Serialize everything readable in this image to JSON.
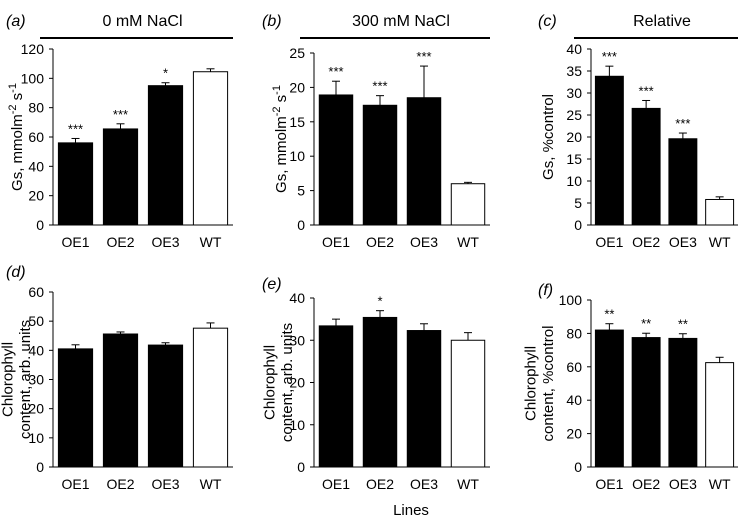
{
  "figure": {
    "common_xlabel": "Lines"
  },
  "chart_data": [
    {
      "type": "bar",
      "label": "(a)",
      "title": "0 mM NaCl",
      "categories": [
        "OE1",
        "OE2",
        "OE3",
        "WT"
      ],
      "ylabel": "Gs, mmolm^-2 s^-1",
      "ylim": [
        0,
        120
      ],
      "yticks": [
        0,
        20,
        40,
        60,
        80,
        100,
        120
      ],
      "values": [
        56,
        65.5,
        95,
        104.5
      ],
      "errors": [
        3,
        3.5,
        2,
        2
      ],
      "significance": [
        "***",
        "***",
        "*",
        ""
      ],
      "bar_colors": [
        "#000000",
        "#000000",
        "#000000",
        "#ffffff"
      ]
    },
    {
      "type": "bar",
      "label": "(b)",
      "title": "300 mM NaCl",
      "categories": [
        "OE1",
        "OE2",
        "OE3",
        "WT"
      ],
      "ylabel": "Gs, mmolm^-2 s^-1",
      "ylim": [
        0,
        25
      ],
      "yticks": [
        0,
        5,
        10,
        15,
        20,
        25
      ],
      "values": [
        18.9,
        17.4,
        18.5,
        6.0
      ],
      "errors": [
        2.0,
        1.4,
        4.6,
        0.2
      ],
      "significance": [
        "***",
        "***",
        "***",
        ""
      ],
      "bar_colors": [
        "#000000",
        "#000000",
        "#000000",
        "#ffffff"
      ]
    },
    {
      "type": "bar",
      "label": "(c)",
      "title": "Relative",
      "categories": [
        "OE1",
        "OE2",
        "OE3",
        "WT"
      ],
      "ylabel": "Gs, %control",
      "ylim": [
        0,
        40
      ],
      "yticks": [
        0,
        5,
        10,
        15,
        20,
        25,
        30,
        35,
        40
      ],
      "values": [
        33.8,
        26.5,
        19.6,
        5.8
      ],
      "errors": [
        2.3,
        1.8,
        1.3,
        0.6
      ],
      "significance": [
        "***",
        "***",
        "***",
        ""
      ],
      "bar_colors": [
        "#000000",
        "#000000",
        "#000000",
        "#ffffff"
      ]
    },
    {
      "type": "bar",
      "label": "(d)",
      "title": "",
      "categories": [
        "OE1",
        "OE2",
        "OE3",
        "WT"
      ],
      "ylabel": "Chlorophyll content, arb. units",
      "ylim": [
        0,
        60
      ],
      "yticks": [
        0,
        10,
        20,
        30,
        40,
        50,
        60
      ],
      "values": [
        40.5,
        45.6,
        41.8,
        47.6
      ],
      "errors": [
        1.4,
        0.7,
        0.8,
        1.8
      ],
      "significance": [
        "",
        "",
        "",
        ""
      ],
      "bar_colors": [
        "#000000",
        "#000000",
        "#000000",
        "#ffffff"
      ]
    },
    {
      "type": "bar",
      "label": "(e)",
      "title": "",
      "categories": [
        "OE1",
        "OE2",
        "OE3",
        "WT"
      ],
      "ylabel": "Chlorophyll content, arb. units",
      "ylim": [
        0,
        40
      ],
      "yticks": [
        0,
        10,
        20,
        30,
        40
      ],
      "values": [
        33.4,
        35.4,
        32.3,
        30.0
      ],
      "errors": [
        1.6,
        1.6,
        1.6,
        1.8
      ],
      "significance": [
        "",
        "*",
        "",
        ""
      ],
      "bar_colors": [
        "#000000",
        "#000000",
        "#000000",
        "#ffffff"
      ]
    },
    {
      "type": "bar",
      "label": "(f)",
      "title": "",
      "categories": [
        "OE1",
        "OE2",
        "OE3",
        "WT"
      ],
      "ylabel": "Chlorophyll content, %control",
      "ylim": [
        0,
        100
      ],
      "yticks": [
        0,
        20,
        40,
        60,
        80,
        100
      ],
      "values": [
        82,
        77.5,
        77,
        62.5
      ],
      "errors": [
        3.8,
        2.6,
        2.8,
        3.2
      ],
      "significance": [
        "**",
        "**",
        "**",
        ""
      ],
      "bar_colors": [
        "#000000",
        "#000000",
        "#000000",
        "#ffffff"
      ]
    }
  ]
}
